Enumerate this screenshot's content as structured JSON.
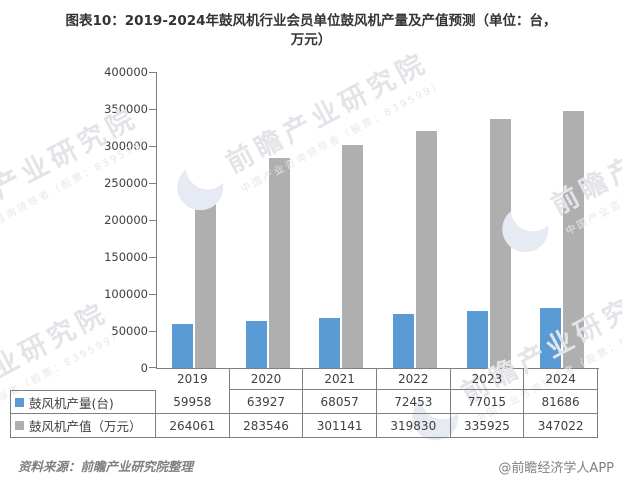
{
  "title": {
    "line1": "图表10：2019-2024年鼓风机行业会员单位鼓风机产量及产值预测（单位：台，",
    "line2": "万元）"
  },
  "chart_data": {
    "type": "bar",
    "title": "图表10：2019-2024年鼓风机行业会员单位鼓风机产量及产值预测（单位：台，万元）",
    "categories": [
      "2019",
      "2020",
      "2021",
      "2022",
      "2023",
      "2024"
    ],
    "series": [
      {
        "name": "鼓风机产量(台)",
        "color": "#5B9BD5",
        "values": [
          59958,
          63927,
          68057,
          72453,
          77015,
          81686
        ]
      },
      {
        "name": "鼓风机产值（万元）",
        "color": "#AFAFAF",
        "values": [
          264061,
          283546,
          301141,
          319830,
          335925,
          347022
        ]
      }
    ],
    "ylim": [
      0,
      400000
    ],
    "ytick_step": 50000,
    "yticks": [
      "0",
      "50000",
      "100000",
      "150000",
      "200000",
      "250000",
      "300000",
      "350000",
      "400000"
    ],
    "grid": false,
    "legend_position": "bottom-table"
  },
  "footer": {
    "source": "资料来源：前瞻产业研究院整理",
    "credit": "@前瞻经济学人APP"
  },
  "watermark": {
    "text": "前瞻产业研究院",
    "subtext": "中国产业咨询领导者（股票：839599）"
  }
}
